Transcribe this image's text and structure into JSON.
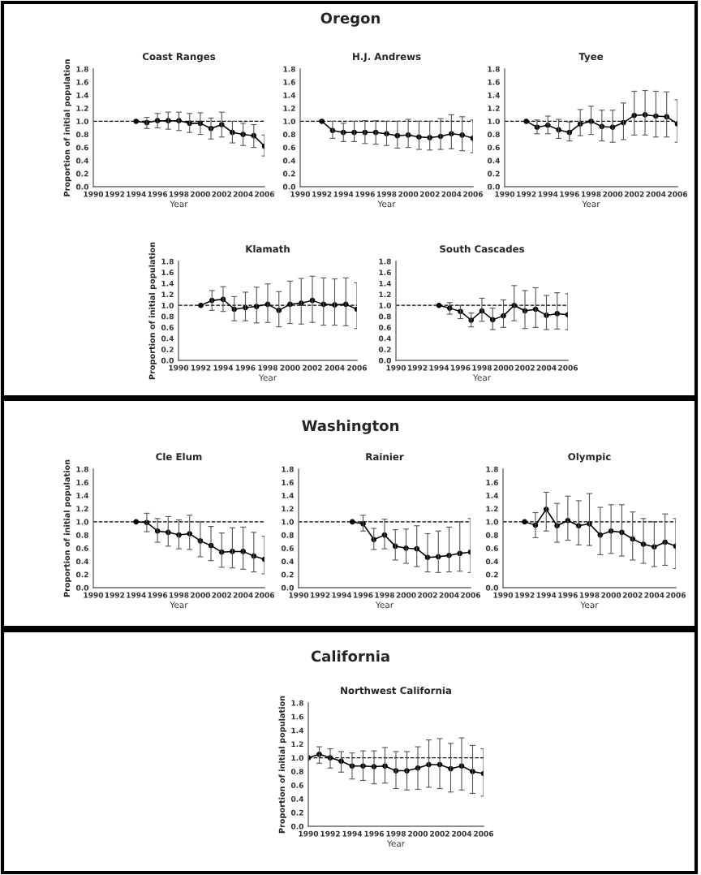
{
  "chart_data": [
    {
      "type": "line",
      "title": "Coast Ranges",
      "xlabel": "Year",
      "ylabel": "Proportion of initial population",
      "annotations": [
        "Oregon"
      ],
      "marker": "circle",
      "line_style": "solid",
      "grid": false,
      "legend": false,
      "xlim": [
        1990,
        2006
      ],
      "xticks": [
        1990,
        1992,
        1994,
        1996,
        1998,
        2000,
        2002,
        2004,
        2006
      ],
      "ylim": [
        0,
        1.8
      ],
      "yticks": [
        {
          "value": 0,
          "label": "0.0"
        },
        {
          "value": 0.2,
          "label": "0.2"
        },
        {
          "value": 0.4,
          "label": "0.4"
        },
        {
          "value": 0.6,
          "label": "0.6"
        },
        {
          "value": 0.8,
          "label": "0.8"
        },
        {
          "value": 1,
          "label": "1.0"
        },
        {
          "value": 1.2,
          "label": "1.2"
        },
        {
          "value": 1.4,
          "label": "1.4"
        },
        {
          "value": 1.6,
          "label": "1.6"
        },
        {
          "value": 1.8,
          "label": "1.8"
        }
      ],
      "ref_lines": [
        {
          "axis": "y",
          "value": 1,
          "line_style": "dashed",
          "color": "#000000"
        }
      ],
      "series": [
        {
          "color": "#000000",
          "x": [
            1994,
            1995,
            1996,
            1997,
            1998,
            1999,
            2000,
            2001,
            2002,
            2003,
            2004,
            2005,
            2006
          ],
          "values": [
            1.0,
            0.98,
            1.01,
            1.01,
            1.01,
            0.97,
            0.97,
            0.89,
            0.95,
            0.83,
            0.8,
            0.78,
            0.62
          ],
          "errors": [
            null,
            [
              0.89,
              1.06
            ],
            [
              0.9,
              1.12
            ],
            [
              0.88,
              1.14
            ],
            [
              0.86,
              1.14
            ],
            [
              0.83,
              1.12
            ],
            [
              0.8,
              1.13
            ],
            [
              0.73,
              1.05
            ],
            [
              0.76,
              1.14
            ],
            [
              0.67,
              1.0
            ],
            [
              0.63,
              0.97
            ],
            [
              0.6,
              0.95
            ],
            [
              0.47,
              0.79
            ]
          ]
        }
      ]
    },
    {
      "type": "line",
      "title": "H.J. Andrews",
      "xlabel": "Year",
      "marker": "circle",
      "line_style": "solid",
      "grid": false,
      "legend": false,
      "xlim": [
        1990,
        2006
      ],
      "xticks": [
        1990,
        1992,
        1994,
        1996,
        1998,
        2000,
        2002,
        2004,
        2006
      ],
      "ylim": [
        0,
        1.8
      ],
      "yticks": [
        {
          "value": 0,
          "label": "0.0"
        },
        {
          "value": 0.2,
          "label": "0.2"
        },
        {
          "value": 0.4,
          "label": "0.4"
        },
        {
          "value": 0.6,
          "label": "0.6"
        },
        {
          "value": 0.8,
          "label": "0.8"
        },
        {
          "value": 1,
          "label": "1.0"
        },
        {
          "value": 1.2,
          "label": "1.2"
        },
        {
          "value": 1.4,
          "label": "1.4"
        },
        {
          "value": 1.6,
          "label": "1.6"
        },
        {
          "value": 1.8,
          "label": "1.8"
        }
      ],
      "ref_lines": [
        {
          "axis": "y",
          "value": 1,
          "line_style": "dashed",
          "color": "#000000"
        }
      ],
      "series": [
        {
          "color": "#000000",
          "x": [
            1992,
            1993,
            1994,
            1995,
            1996,
            1997,
            1998,
            1999,
            2000,
            2001,
            2002,
            2003,
            2004,
            2005,
            2006
          ],
          "values": [
            1.0,
            0.86,
            0.83,
            0.83,
            0.83,
            0.83,
            0.81,
            0.78,
            0.79,
            0.76,
            0.75,
            0.77,
            0.81,
            0.79,
            0.74
          ],
          "errors": [
            null,
            [
              0.74,
              1.0
            ],
            [
              0.69,
              0.97
            ],
            [
              0.69,
              1.0
            ],
            [
              0.66,
              1.01
            ],
            [
              0.65,
              1.01
            ],
            [
              0.63,
              1.0
            ],
            [
              0.59,
              1.0
            ],
            [
              0.6,
              1.03
            ],
            [
              0.57,
              1.0
            ],
            [
              0.56,
              1.0
            ],
            [
              0.57,
              1.04
            ],
            [
              0.58,
              1.1
            ],
            [
              0.55,
              1.07
            ],
            [
              0.52,
              1.02
            ]
          ]
        }
      ]
    },
    {
      "type": "line",
      "title": "Tyee",
      "xlabel": "Year",
      "marker": "circle",
      "line_style": "solid",
      "grid": false,
      "legend": false,
      "xlim": [
        1990,
        2006
      ],
      "xticks": [
        1990,
        1992,
        1994,
        1996,
        1998,
        2000,
        2002,
        2004,
        2006
      ],
      "ylim": [
        0,
        1.8
      ],
      "yticks": [
        {
          "value": 0,
          "label": "0.0"
        },
        {
          "value": 0.2,
          "label": "0.2"
        },
        {
          "value": 0.4,
          "label": "0.4"
        },
        {
          "value": 0.6,
          "label": "0.6"
        },
        {
          "value": 0.8,
          "label": "0.8"
        },
        {
          "value": 1,
          "label": "1.0"
        },
        {
          "value": 1.2,
          "label": "1.2"
        },
        {
          "value": 1.4,
          "label": "1.4"
        },
        {
          "value": 1.6,
          "label": "1.6"
        },
        {
          "value": 1.8,
          "label": "1.8"
        }
      ],
      "ref_lines": [
        {
          "axis": "y",
          "value": 1,
          "line_style": "dashed",
          "color": "#000000"
        }
      ],
      "series": [
        {
          "color": "#000000",
          "x": [
            1992,
            1993,
            1994,
            1995,
            1996,
            1997,
            1998,
            1999,
            2000,
            2001,
            2002,
            2003,
            2004,
            2005,
            2006
          ],
          "values": [
            1.0,
            0.91,
            0.94,
            0.87,
            0.83,
            0.96,
            1.0,
            0.92,
            0.91,
            0.98,
            1.09,
            1.1,
            1.08,
            1.07,
            0.96
          ],
          "errors": [
            null,
            [
              0.81,
              1.02
            ],
            [
              0.81,
              1.08
            ],
            [
              0.74,
              1.03
            ],
            [
              0.7,
              0.99
            ],
            [
              0.78,
              1.18
            ],
            [
              0.8,
              1.23
            ],
            [
              0.7,
              1.17
            ],
            [
              0.68,
              1.17
            ],
            [
              0.72,
              1.28
            ],
            [
              0.79,
              1.46
            ],
            [
              0.79,
              1.47
            ],
            [
              0.76,
              1.46
            ],
            [
              0.76,
              1.45
            ],
            [
              0.68,
              1.33
            ]
          ]
        }
      ]
    },
    {
      "type": "line",
      "title": "Klamath",
      "xlabel": "Year",
      "ylabel": "Proportion of initial population",
      "marker": "circle",
      "line_style": "solid",
      "grid": false,
      "legend": false,
      "xlim": [
        1990,
        2006
      ],
      "xticks": [
        1990,
        1992,
        1994,
        1996,
        1998,
        2000,
        2002,
        2004,
        2006
      ],
      "ylim": [
        0,
        1.8
      ],
      "yticks": [
        {
          "value": 0,
          "label": "0.0"
        },
        {
          "value": 0.2,
          "label": "0.2"
        },
        {
          "value": 0.4,
          "label": "0.4"
        },
        {
          "value": 0.6,
          "label": "0.6"
        },
        {
          "value": 0.8,
          "label": "0.8"
        },
        {
          "value": 1,
          "label": "1.0"
        },
        {
          "value": 1.2,
          "label": "1.2"
        },
        {
          "value": 1.4,
          "label": "1.4"
        },
        {
          "value": 1.6,
          "label": "1.6"
        },
        {
          "value": 1.8,
          "label": "1.8"
        }
      ],
      "ref_lines": [
        {
          "axis": "y",
          "value": 1,
          "line_style": "dashed",
          "color": "#000000"
        }
      ],
      "series": [
        {
          "color": "#000000",
          "x": [
            1992,
            1993,
            1994,
            1995,
            1996,
            1997,
            1998,
            1999,
            2000,
            2001,
            2002,
            2003,
            2004,
            2005,
            2006
          ],
          "values": [
            1.0,
            1.09,
            1.11,
            0.93,
            0.96,
            0.98,
            1.02,
            0.91,
            1.02,
            1.04,
            1.09,
            1.02,
            1.01,
            1.02,
            0.93
          ],
          "errors": [
            null,
            [
              0.91,
              1.27
            ],
            [
              0.89,
              1.34
            ],
            [
              0.72,
              1.16
            ],
            [
              0.72,
              1.24
            ],
            [
              0.68,
              1.33
            ],
            [
              0.69,
              1.39
            ],
            [
              0.61,
              1.25
            ],
            [
              0.67,
              1.44
            ],
            [
              0.66,
              1.49
            ],
            [
              0.69,
              1.53
            ],
            [
              0.64,
              1.5
            ],
            [
              0.64,
              1.48
            ],
            [
              0.63,
              1.5
            ],
            [
              0.58,
              1.41
            ]
          ]
        }
      ]
    },
    {
      "type": "line",
      "title": "South Cascades",
      "xlabel": "Year",
      "marker": "circle",
      "line_style": "solid",
      "grid": false,
      "legend": false,
      "xlim": [
        1990,
        2006
      ],
      "xticks": [
        1990,
        1992,
        1994,
        1996,
        1998,
        2000,
        2002,
        2004,
        2006
      ],
      "ylim": [
        0,
        1.8
      ],
      "yticks": [
        {
          "value": 0,
          "label": "0.0"
        },
        {
          "value": 0.2,
          "label": "0.2"
        },
        {
          "value": 0.4,
          "label": "0.4"
        },
        {
          "value": 0.6,
          "label": "0.6"
        },
        {
          "value": 0.8,
          "label": "0.8"
        },
        {
          "value": 1,
          "label": "1.0"
        },
        {
          "value": 1.2,
          "label": "1.2"
        },
        {
          "value": 1.4,
          "label": "1.4"
        },
        {
          "value": 1.6,
          "label": "1.6"
        },
        {
          "value": 1.8,
          "label": "1.8"
        }
      ],
      "ref_lines": [
        {
          "axis": "y",
          "value": 1,
          "line_style": "dashed",
          "color": "#000000"
        }
      ],
      "series": [
        {
          "color": "#000000",
          "x": [
            1994,
            1995,
            1996,
            1997,
            1998,
            1999,
            2000,
            2001,
            2002,
            2003,
            2004,
            2005,
            2006
          ],
          "values": [
            1.0,
            0.95,
            0.89,
            0.73,
            0.9,
            0.74,
            0.81,
            1.0,
            0.9,
            0.93,
            0.82,
            0.85,
            0.83
          ],
          "errors": [
            null,
            [
              0.84,
              1.05
            ],
            [
              0.76,
              1.0
            ],
            [
              0.61,
              0.86
            ],
            [
              0.71,
              1.13
            ],
            [
              0.56,
              0.95
            ],
            [
              0.6,
              1.1
            ],
            [
              0.72,
              1.36
            ],
            [
              0.58,
              1.27
            ],
            [
              0.6,
              1.32
            ],
            [
              0.56,
              1.18
            ],
            [
              0.57,
              1.23
            ],
            [
              0.56,
              1.21
            ]
          ]
        }
      ]
    },
    {
      "type": "line",
      "title": "Cle Elum",
      "xlabel": "Year",
      "ylabel": "Proportion of initial population",
      "annotations": [
        "Washington"
      ],
      "marker": "circle",
      "line_style": "solid",
      "grid": false,
      "legend": false,
      "xlim": [
        1990,
        2006
      ],
      "xticks": [
        1990,
        1992,
        1994,
        1996,
        1998,
        2000,
        2002,
        2004,
        2006
      ],
      "ylim": [
        0,
        1.8
      ],
      "yticks": [
        {
          "value": 0,
          "label": "0.0"
        },
        {
          "value": 0.2,
          "label": "0.2"
        },
        {
          "value": 0.4,
          "label": "0.4"
        },
        {
          "value": 0.6,
          "label": "0.6"
        },
        {
          "value": 0.8,
          "label": "0.8"
        },
        {
          "value": 1,
          "label": "1.0"
        },
        {
          "value": 1.2,
          "label": "1.2"
        },
        {
          "value": 1.4,
          "label": "1.4"
        },
        {
          "value": 1.6,
          "label": "1.6"
        },
        {
          "value": 1.8,
          "label": "1.8"
        }
      ],
      "ref_lines": [
        {
          "axis": "y",
          "value": 1,
          "line_style": "dashed",
          "color": "#000000"
        }
      ],
      "series": [
        {
          "color": "#000000",
          "x": [
            1994,
            1995,
            1996,
            1997,
            1998,
            1999,
            2000,
            2001,
            2002,
            2003,
            2004,
            2005,
            2006
          ],
          "values": [
            1.0,
            0.99,
            0.86,
            0.84,
            0.8,
            0.82,
            0.71,
            0.64,
            0.54,
            0.55,
            0.55,
            0.48,
            0.43
          ],
          "errors": [
            null,
            [
              0.85,
              1.13
            ],
            [
              0.69,
              1.05
            ],
            [
              0.63,
              1.08
            ],
            [
              0.59,
              1.03
            ],
            [
              0.58,
              1.1
            ],
            [
              0.47,
              1.0
            ],
            [
              0.41,
              0.93
            ],
            [
              0.31,
              0.83
            ],
            [
              0.3,
              0.91
            ],
            [
              0.28,
              0.92
            ],
            [
              0.24,
              0.84
            ],
            [
              0.21,
              0.78
            ]
          ]
        }
      ]
    },
    {
      "type": "line",
      "title": "Rainier",
      "xlabel": "Year",
      "marker": "circle",
      "line_style": "solid",
      "grid": false,
      "legend": false,
      "xlim": [
        1990,
        2006
      ],
      "xticks": [
        1990,
        1992,
        1994,
        1996,
        1998,
        2000,
        2002,
        2004,
        2006
      ],
      "ylim": [
        0,
        1.8
      ],
      "yticks": [
        {
          "value": 0,
          "label": "0.0"
        },
        {
          "value": 0.2,
          "label": "0.2"
        },
        {
          "value": 0.4,
          "label": "0.4"
        },
        {
          "value": 0.6,
          "label": "0.6"
        },
        {
          "value": 0.8,
          "label": "0.8"
        },
        {
          "value": 1,
          "label": "1.0"
        },
        {
          "value": 1.2,
          "label": "1.2"
        },
        {
          "value": 1.4,
          "label": "1.4"
        },
        {
          "value": 1.6,
          "label": "1.6"
        },
        {
          "value": 1.8,
          "label": "1.8"
        }
      ],
      "ref_lines": [
        {
          "axis": "y",
          "value": 1,
          "line_style": "dashed",
          "color": "#000000"
        }
      ],
      "series": [
        {
          "color": "#000000",
          "x": [
            1995,
            1996,
            1997,
            1998,
            1999,
            2000,
            2001,
            2002,
            2003,
            2004,
            2005,
            2006
          ],
          "values": [
            1.0,
            0.97,
            0.73,
            0.8,
            0.63,
            0.6,
            0.59,
            0.46,
            0.47,
            0.49,
            0.52,
            0.54
          ],
          "errors": [
            null,
            [
              0.86,
              1.1
            ],
            [
              0.58,
              0.9
            ],
            [
              0.59,
              1.04
            ],
            [
              0.42,
              0.88
            ],
            [
              0.37,
              0.89
            ],
            [
              0.32,
              0.94
            ],
            [
              0.24,
              0.82
            ],
            [
              0.23,
              0.86
            ],
            [
              0.24,
              0.92
            ],
            [
              0.25,
              1.0
            ],
            [
              0.23,
              1.05
            ]
          ]
        }
      ]
    },
    {
      "type": "line",
      "title": "Olympic",
      "xlabel": "Year",
      "marker": "circle",
      "line_style": "solid",
      "grid": false,
      "legend": false,
      "xlim": [
        1990,
        2006
      ],
      "xticks": [
        1990,
        1992,
        1994,
        1996,
        1998,
        2000,
        2002,
        2004,
        2006
      ],
      "ylim": [
        0,
        1.8
      ],
      "yticks": [
        {
          "value": 0,
          "label": "0.0"
        },
        {
          "value": 0.2,
          "label": "0.2"
        },
        {
          "value": 0.4,
          "label": "0.4"
        },
        {
          "value": 0.6,
          "label": "0.6"
        },
        {
          "value": 0.8,
          "label": "0.8"
        },
        {
          "value": 1,
          "label": "1.0"
        },
        {
          "value": 1.2,
          "label": "1.2"
        },
        {
          "value": 1.4,
          "label": "1.4"
        },
        {
          "value": 1.6,
          "label": "1.6"
        },
        {
          "value": 1.8,
          "label": "1.8"
        }
      ],
      "ref_lines": [
        {
          "axis": "y",
          "value": 1,
          "line_style": "dashed",
          "color": "#000000"
        }
      ],
      "series": [
        {
          "color": "#000000",
          "x": [
            1992,
            1993,
            1994,
            1995,
            1996,
            1997,
            1998,
            1999,
            2000,
            2001,
            2002,
            2003,
            2004,
            2005,
            2006
          ],
          "values": [
            1.0,
            0.95,
            1.19,
            0.94,
            1.02,
            0.94,
            0.97,
            0.8,
            0.86,
            0.84,
            0.74,
            0.66,
            0.62,
            0.69,
            0.63
          ],
          "errors": [
            null,
            [
              0.76,
              1.14
            ],
            [
              0.86,
              1.45
            ],
            [
              0.69,
              1.28
            ],
            [
              0.72,
              1.39
            ],
            [
              0.65,
              1.32
            ],
            [
              0.64,
              1.43
            ],
            [
              0.5,
              1.22
            ],
            [
              0.52,
              1.26
            ],
            [
              0.48,
              1.26
            ],
            [
              0.42,
              1.15
            ],
            [
              0.37,
              1.05
            ],
            [
              0.32,
              1.0
            ],
            [
              0.34,
              1.12
            ],
            [
              0.29,
              1.05
            ]
          ]
        }
      ]
    },
    {
      "type": "line",
      "title": "Northwest California",
      "xlabel": "Year",
      "ylabel": "Proportion of initial population",
      "annotations": [
        "California"
      ],
      "marker": "circle",
      "line_style": "solid",
      "grid": false,
      "legend": false,
      "xlim": [
        1990,
        2006
      ],
      "xticks": [
        1990,
        1992,
        1994,
        1996,
        1998,
        2000,
        2002,
        2004,
        2006
      ],
      "ylim": [
        0,
        1.8
      ],
      "yticks": [
        {
          "value": 0,
          "label": "0.0"
        },
        {
          "value": 0.2,
          "label": "0.2"
        },
        {
          "value": 0.4,
          "label": "0.4"
        },
        {
          "value": 0.6,
          "label": "0.6"
        },
        {
          "value": 0.8,
          "label": "0.8"
        },
        {
          "value": 1,
          "label": "1.0"
        },
        {
          "value": 1.2,
          "label": "1.2"
        },
        {
          "value": 1.4,
          "label": "1.4"
        },
        {
          "value": 1.6,
          "label": "1.6"
        },
        {
          "value": 1.8,
          "label": "1.8"
        }
      ],
      "ref_lines": [
        {
          "axis": "y",
          "value": 1,
          "line_style": "dashed",
          "color": "#000000"
        }
      ],
      "series": [
        {
          "color": "#000000",
          "x": [
            1990,
            1991,
            1992,
            1993,
            1994,
            1995,
            1996,
            1997,
            1998,
            1999,
            2000,
            2001,
            2002,
            2003,
            2004,
            2005,
            2006
          ],
          "values": [
            1.0,
            1.05,
            1.0,
            0.95,
            0.88,
            0.88,
            0.87,
            0.88,
            0.81,
            0.81,
            0.85,
            0.9,
            0.9,
            0.84,
            0.88,
            0.8,
            0.77
          ],
          "errors": [
            null,
            [
              0.92,
              1.16
            ],
            [
              0.85,
              1.13
            ],
            [
              0.79,
              1.09
            ],
            [
              0.69,
              1.07
            ],
            [
              0.67,
              1.1
            ],
            [
              0.62,
              1.1
            ],
            [
              0.63,
              1.15
            ],
            [
              0.55,
              1.09
            ],
            [
              0.53,
              1.09
            ],
            [
              0.54,
              1.16
            ],
            [
              0.57,
              1.26
            ],
            [
              0.55,
              1.28
            ],
            [
              0.5,
              1.21
            ],
            [
              0.53,
              1.29
            ],
            [
              0.48,
              1.18
            ],
            [
              0.44,
              1.13
            ]
          ]
        }
      ]
    }
  ]
}
